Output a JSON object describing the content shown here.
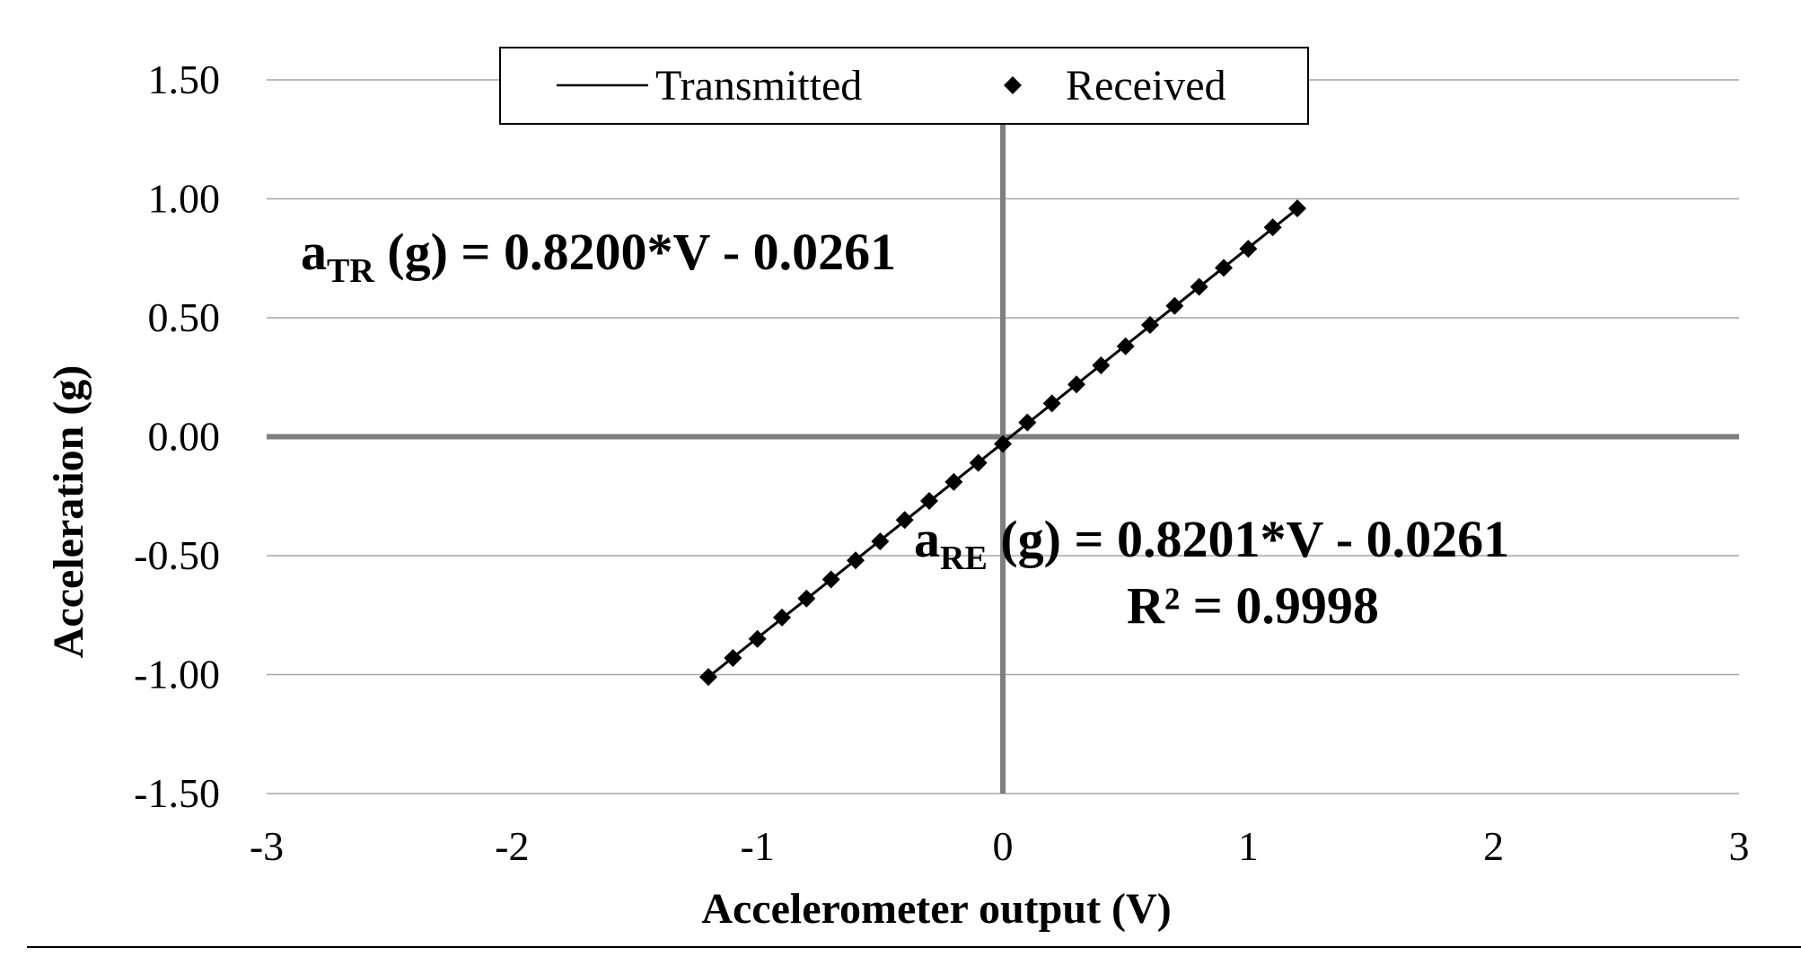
{
  "chart_data": {
    "type": "scatter",
    "title": "",
    "xlabel": "Accelerometer output (V)",
    "ylabel": "Acceleration (g)",
    "xlim": [
      -3,
      3
    ],
    "ylim": [
      -1.5,
      1.5
    ],
    "x_ticks": [
      "-3",
      "-2",
      "-1",
      "0",
      "1",
      "2",
      "3"
    ],
    "y_ticks": [
      "1.50",
      "1.00",
      "0.50",
      "0.00",
      "-0.50",
      "-1.00",
      "-1.50"
    ],
    "grid": true,
    "legend_position": "top-center",
    "series": [
      {
        "name": "Transmitted",
        "kind": "line",
        "slope": 0.82,
        "intercept": -0.0261,
        "x_range": [
          -1.2,
          1.2
        ]
      },
      {
        "name": "Received",
        "kind": "marker",
        "marker": "diamond",
        "x": [
          -1.2,
          -1.1,
          -1.0,
          -0.9,
          -0.8,
          -0.7,
          -0.6,
          -0.5,
          -0.4,
          -0.3,
          -0.2,
          -0.1,
          0.0,
          0.1,
          0.2,
          0.3,
          0.4,
          0.5,
          0.6,
          0.7,
          0.8,
          0.9,
          1.0,
          1.1,
          1.2
        ],
        "y": [
          -1.01,
          -0.93,
          -0.85,
          -0.76,
          -0.68,
          -0.6,
          -0.52,
          -0.44,
          -0.35,
          -0.27,
          -0.19,
          -0.11,
          -0.03,
          0.06,
          0.14,
          0.22,
          0.3,
          0.38,
          0.47,
          0.55,
          0.63,
          0.71,
          0.79,
          0.88,
          0.96
        ]
      }
    ],
    "annotations": {
      "transmitted_eq": {
        "a": "a",
        "sub": "TR",
        "rest": " (g)  = 0.8200*V - 0.0261"
      },
      "received_eq": {
        "a": "a",
        "sub": "RE",
        "rest": " (g)  = 0.8201*V - 0.0261"
      },
      "r_squared": "R² = 0.9998"
    },
    "colors": {
      "axis_zero": "#808080",
      "grid": "#a6a6a6",
      "series": "#000000"
    }
  }
}
